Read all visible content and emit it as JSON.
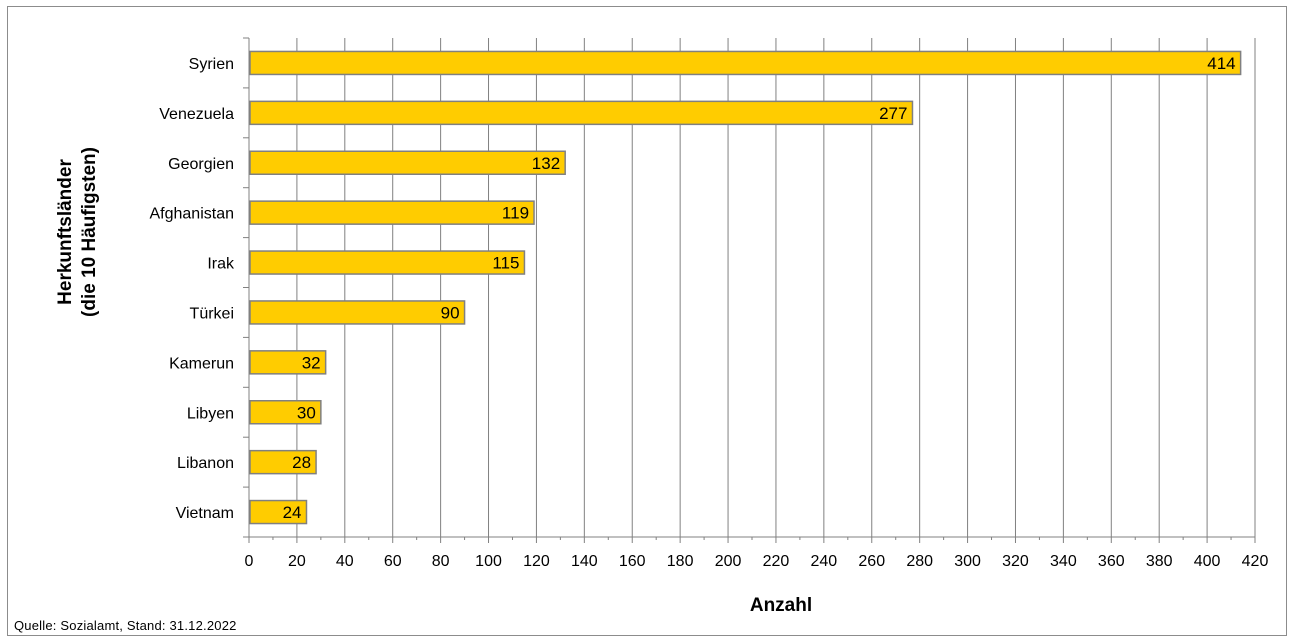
{
  "chart_data": {
    "type": "bar",
    "orientation": "horizontal",
    "categories": [
      "Syrien",
      "Venezuela",
      "Georgien",
      "Afghanistan",
      "Irak",
      "Türkei",
      "Kamerun",
      "Libyen",
      "Libanon",
      "Vietnam"
    ],
    "values": [
      414,
      277,
      132,
      119,
      115,
      90,
      32,
      30,
      28,
      24
    ],
    "xlabel": "Anzahl",
    "ylabel_line1": "Herkunftsländer",
    "ylabel_line2": "(die 10 Häufigsten)",
    "xlim": [
      0,
      420
    ],
    "x_ticks": [
      "0",
      "20",
      "40",
      "60",
      "80",
      "100",
      "120",
      "140",
      "160",
      "180",
      "200",
      "220",
      "240",
      "260",
      "280",
      "300",
      "320",
      "340",
      "360",
      "380",
      "400",
      "420"
    ],
    "grid": "vertical",
    "data_labels": true,
    "bar_color": "#FFCC00",
    "bar_edge_color": "#808080"
  },
  "source_text": "Quelle: Sozialamt, Stand: 31.12.2022"
}
